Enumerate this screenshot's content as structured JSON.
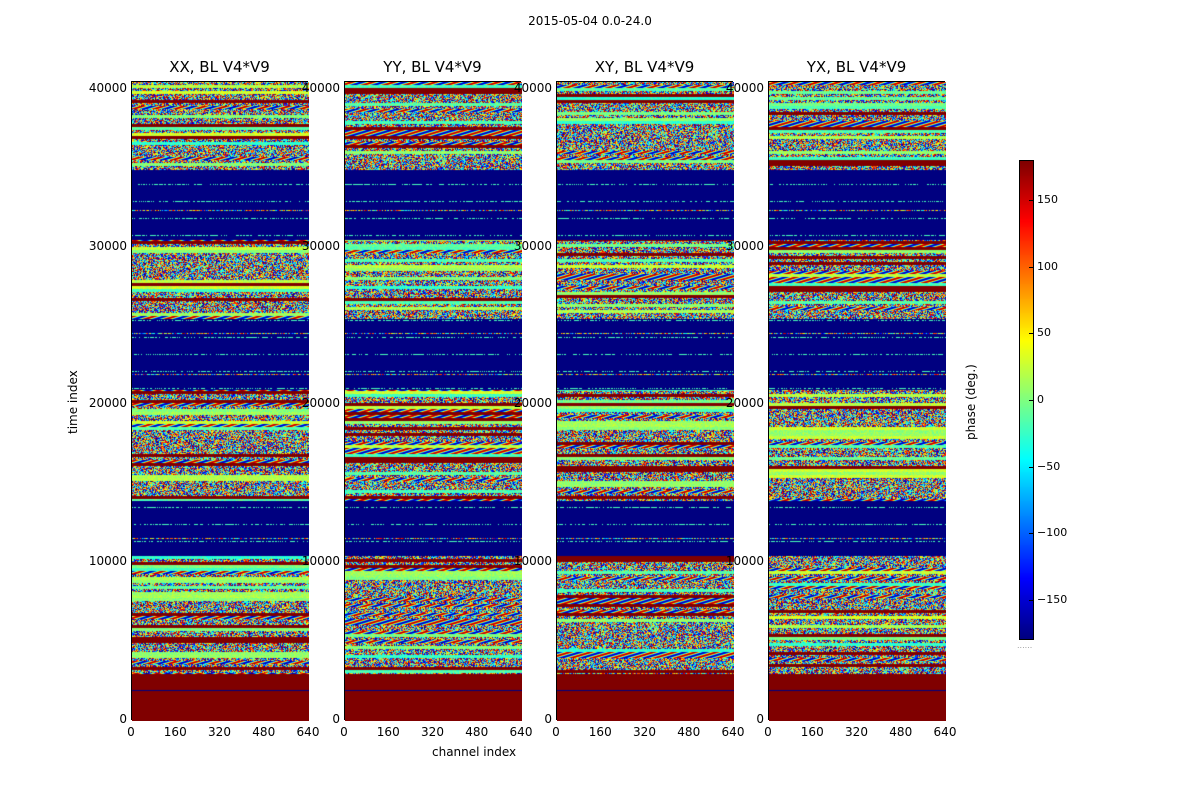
{
  "chart_data": {
    "type": "heatmap",
    "suptitle": "2015-05-04 0.0-24.0",
    "xlabel": "channel index",
    "ylabel": "time index",
    "xlim": [
      0,
      640
    ],
    "ylim": [
      0,
      40500
    ],
    "xticks": [
      "0",
      "160",
      "320",
      "480",
      "640"
    ],
    "yticks": [
      "0",
      "10000",
      "20000",
      "30000",
      "40000"
    ],
    "panels": [
      {
        "title": "XX, BL V4*V9"
      },
      {
        "title": "YY, BL V4*V9"
      },
      {
        "title": "XY, BL V4*V9"
      },
      {
        "title": "YX, BL V4*V9"
      }
    ],
    "colorbar": {
      "label": "phase (deg.)",
      "range": [
        -180,
        180
      ],
      "ticks": [
        "150",
        "100",
        "50",
        "0",
        "−50",
        "−100",
        "−150"
      ],
      "tick_values": [
        150,
        100,
        50,
        0,
        -50,
        -100,
        -150
      ],
      "colormap": "jet"
    },
    "time_bands": [
      {
        "from": 0,
        "to": 3000,
        "pattern": "constant",
        "phase": 180
      },
      {
        "from": 3000,
        "to": 10500,
        "pattern": "noise"
      },
      {
        "from": 10500,
        "to": 14000,
        "pattern": "flagged",
        "phase": -180
      },
      {
        "from": 14000,
        "to": 21000,
        "pattern": "noise"
      },
      {
        "from": 21000,
        "to": 25500,
        "pattern": "flagged",
        "phase": -180
      },
      {
        "from": 25500,
        "to": 30500,
        "pattern": "noise"
      },
      {
        "from": 30500,
        "to": 35000,
        "pattern": "flagged",
        "phase": -180
      },
      {
        "from": 35000,
        "to": 40500,
        "pattern": "noise"
      }
    ]
  }
}
